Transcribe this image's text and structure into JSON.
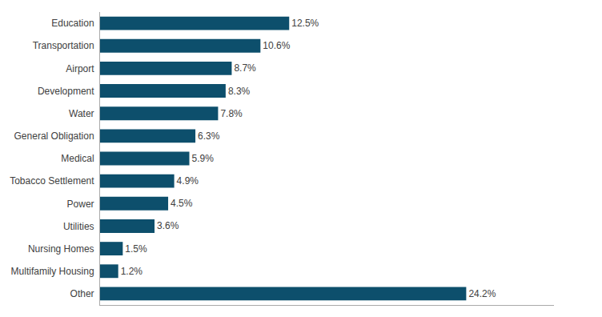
{
  "chart_data": {
    "type": "bar",
    "orientation": "horizontal",
    "categories": [
      "Education",
      "Transportation",
      "Airport",
      "Development",
      "Water",
      "General Obligation",
      "Medical",
      "Tobacco Settlement",
      "Power",
      "Utilities",
      "Nursing Homes",
      "Multifamily Housing",
      "Other"
    ],
    "values": [
      12.5,
      10.6,
      8.7,
      8.3,
      7.8,
      6.3,
      5.9,
      4.9,
      4.5,
      3.6,
      1.5,
      1.2,
      24.2
    ],
    "value_labels": [
      "12.5%",
      "10.6%",
      "8.7%",
      "8.3%",
      "7.8%",
      "6.3%",
      "5.9%",
      "4.9%",
      "4.5%",
      "3.6%",
      "1.5%",
      "1.2%",
      "24.2%"
    ],
    "data_labels": true,
    "color": "#0d4f6c",
    "xlim": [
      0,
      30
    ],
    "grid": false,
    "tick_labels": "y"
  }
}
